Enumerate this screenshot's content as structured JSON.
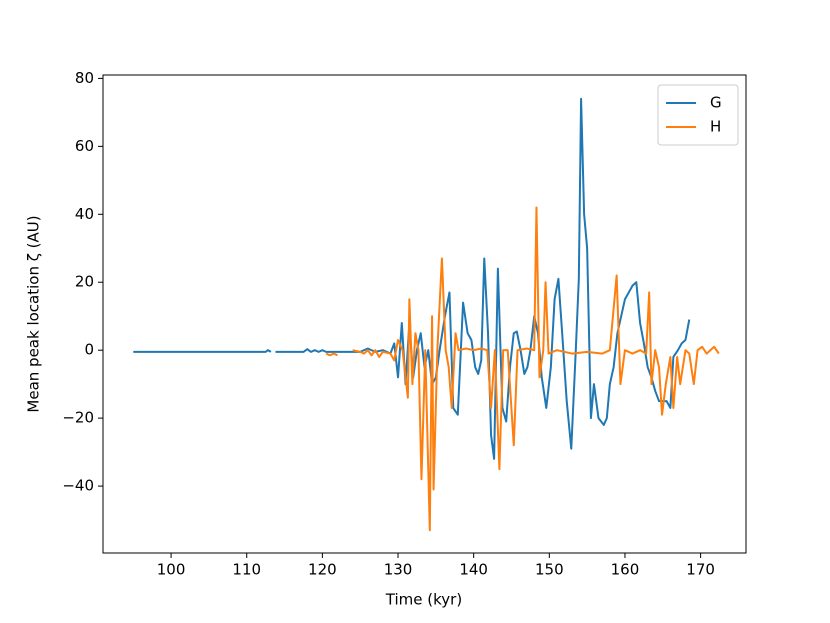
{
  "chart_data": {
    "type": "line",
    "xlabel": "Time (kyr)",
    "ylabel": "Mean peak location ζ (AU)",
    "xlim": [
      91,
      176
    ],
    "ylim": [
      -59.7,
      81
    ],
    "xticks": [
      100,
      110,
      120,
      130,
      140,
      150,
      160,
      170
    ],
    "yticks": [
      {
        "value": -40,
        "label": "−40"
      },
      {
        "value": -20,
        "label": "−20"
      },
      0,
      20,
      40,
      60,
      80
    ],
    "legend": "upper right",
    "series": [
      {
        "name": "G",
        "color": "#1f77b4",
        "x": [
          95,
          100,
          105,
          110,
          112.5,
          112.8,
          113.2,
          113.5,
          113.8,
          117.5,
          118,
          118.5,
          119,
          119.5,
          120,
          120.5,
          121,
          125,
          126,
          127,
          128,
          129,
          129.5,
          130,
          130.5,
          131,
          131.5,
          132,
          132.5,
          133,
          133.5,
          134,
          134.5,
          135,
          135.5,
          136.2,
          136.8,
          137.3,
          137.9,
          138.6,
          139.2,
          139.7,
          140.2,
          140.6,
          141,
          141.4,
          141.9,
          142.3,
          142.7,
          143.2,
          143.8,
          144.3,
          144.8,
          145.3,
          145.7,
          146.2,
          146.7,
          147.1,
          147.5,
          148,
          148.5,
          149,
          149.6,
          150.2,
          150.7,
          151.2,
          151.7,
          152.3,
          152.9,
          153.5,
          153.9,
          154.2,
          154.6,
          155,
          155.5,
          155.9,
          156.5,
          157.2,
          157.6,
          158,
          158.5,
          159,
          159.5,
          160,
          160.5,
          161,
          161.5,
          162,
          162.5,
          163,
          163.5,
          164,
          164.5,
          165,
          165.5,
          166,
          166.4,
          167,
          167.5,
          168,
          168.5
        ],
        "values": [
          -0.5,
          -0.5,
          -0.5,
          -0.5,
          -0.5,
          0,
          -0.5,
          null,
          -0.5,
          -0.5,
          0.3,
          -0.5,
          0,
          -0.5,
          0,
          -0.5,
          -0.5,
          -0.5,
          0.5,
          -0.5,
          0,
          -1,
          2,
          -8,
          8,
          -10,
          8,
          -8,
          0,
          5,
          -5,
          0,
          -10,
          -8,
          0,
          10,
          17,
          -17,
          -19,
          14,
          5,
          3,
          -5,
          -7,
          -3,
          27,
          5,
          -25,
          -32,
          24,
          -17,
          -21,
          -5,
          5,
          5.5,
          0,
          -7,
          -5,
          0,
          10,
          5,
          -8,
          -17,
          -5,
          15,
          21,
          5,
          -15,
          -29,
          0,
          21,
          74,
          40,
          30,
          -20,
          -10,
          -20,
          -22,
          -20,
          -10,
          -5,
          5,
          10,
          15,
          17,
          19,
          20,
          8,
          2,
          -5,
          -8,
          -12,
          -15,
          -15,
          -15,
          -17,
          -2,
          0,
          2,
          3,
          9
        ]
      },
      {
        "name": "H",
        "color": "#ff7f0e",
        "x": [
          120.5,
          121,
          121.5,
          122,
          123,
          124,
          125,
          125.5,
          126,
          126.5,
          127,
          127.5,
          128,
          129,
          129.5,
          130,
          130.6,
          131.3,
          131.5,
          131.9,
          132.3,
          132.7,
          133.1,
          133.6,
          134.2,
          134.5,
          134.7,
          135.2,
          135.8,
          136.3,
          136.7,
          137.1,
          137.6,
          138,
          139,
          140,
          141,
          141.8,
          142.3,
          142.8,
          143.4,
          143.9,
          144.5,
          145.3,
          145.8,
          147,
          148,
          148.3,
          148.7,
          149.2,
          149.5,
          149.9,
          151,
          153,
          155,
          157,
          158,
          158.9,
          159.4,
          160,
          161,
          162,
          162.8,
          163.2,
          163.5,
          164,
          164.5,
          164.9,
          165.4,
          166,
          166.4,
          166.9,
          167.3,
          168,
          168.5,
          169.1,
          169.6,
          170.2,
          170.8,
          171.3,
          171.8,
          172.4
        ],
        "values": [
          -1,
          -1.5,
          -1,
          -1.5,
          null,
          0,
          -0.5,
          -1,
          0,
          -1.5,
          0,
          -2,
          -0.5,
          -1,
          -3,
          3,
          0,
          -14,
          15,
          -10,
          5,
          0,
          -38,
          0,
          -53,
          10,
          -41,
          0,
          27,
          0,
          -5,
          -17,
          5,
          0,
          0.5,
          0,
          0.5,
          0,
          -17,
          0,
          -35,
          0,
          0,
          -28,
          0,
          0.5,
          0,
          42,
          -8,
          0,
          20,
          -1,
          0,
          -1,
          -0.5,
          -1,
          0,
          22,
          -10,
          0,
          -1,
          0,
          -1,
          17,
          -10,
          0,
          -5,
          -19,
          -10,
          -2,
          -17,
          -2,
          -10,
          0,
          -1,
          -10,
          0,
          1,
          -1,
          0,
          1,
          -1
        ]
      }
    ]
  }
}
